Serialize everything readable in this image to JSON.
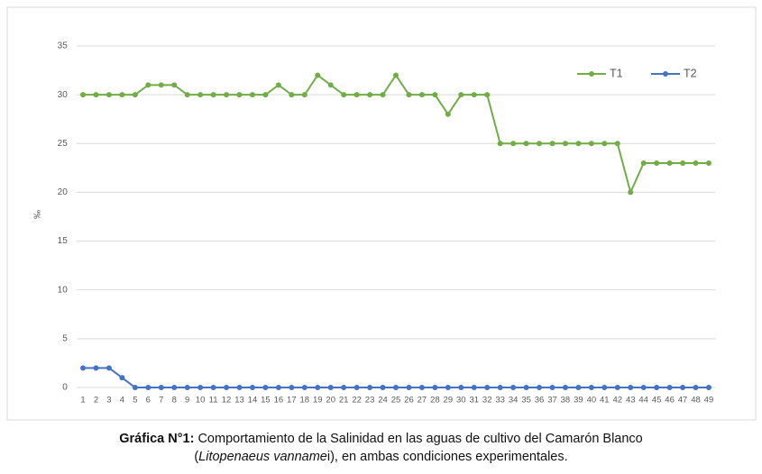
{
  "chart_data": {
    "type": "line",
    "ylabel": "‰",
    "categories": [
      "1",
      "2",
      "3",
      "4",
      "5",
      "6",
      "7",
      "8",
      "9",
      "10",
      "11",
      "12",
      "13",
      "14",
      "15",
      "16",
      "17",
      "18",
      "19",
      "20",
      "21",
      "22",
      "23",
      "24",
      "25",
      "26",
      "27",
      "28",
      "29",
      "30",
      "31",
      "32",
      "33",
      "34",
      "35",
      "36",
      "37",
      "38",
      "39",
      "40",
      "41",
      "42",
      "43",
      "44",
      "45",
      "46",
      "47",
      "48",
      "49"
    ],
    "series": [
      {
        "name": "T1",
        "color": "#70ad47",
        "values": [
          30,
          30,
          30,
          30,
          30,
          31,
          31,
          31,
          30,
          30,
          30,
          30,
          30,
          30,
          30,
          31,
          30,
          30,
          32,
          31,
          30,
          30,
          30,
          30,
          32,
          30,
          30,
          30,
          28,
          30,
          30,
          30,
          25,
          25,
          25,
          25,
          25,
          25,
          25,
          25,
          25,
          25,
          20,
          23,
          23,
          23,
          23,
          23,
          23
        ]
      },
      {
        "name": "T2",
        "color": "#4472c4",
        "values": [
          2,
          2,
          2,
          1,
          0,
          0,
          0,
          0,
          0,
          0,
          0,
          0,
          0,
          0,
          0,
          0,
          0,
          0,
          0,
          0,
          0,
          0,
          0,
          0,
          0,
          0,
          0,
          0,
          0,
          0,
          0,
          0,
          0,
          0,
          0,
          0,
          0,
          0,
          0,
          0,
          0,
          0,
          0,
          0,
          0,
          0,
          0,
          0,
          0
        ]
      }
    ],
    "ylim": [
      0,
      35
    ],
    "yticks": [
      0,
      5,
      10,
      15,
      20,
      25,
      30,
      35
    ],
    "grid": true,
    "legend": "top-right",
    "caption": {
      "label": "Gráfica N°1:",
      "text1": "Comportamiento de la Salinidad en las aguas de cultivo del Camarón Blanco",
      "open": "(",
      "species": "Litopenaeus vanname",
      "text2": "i), en ambas condiciones experimentales."
    }
  }
}
